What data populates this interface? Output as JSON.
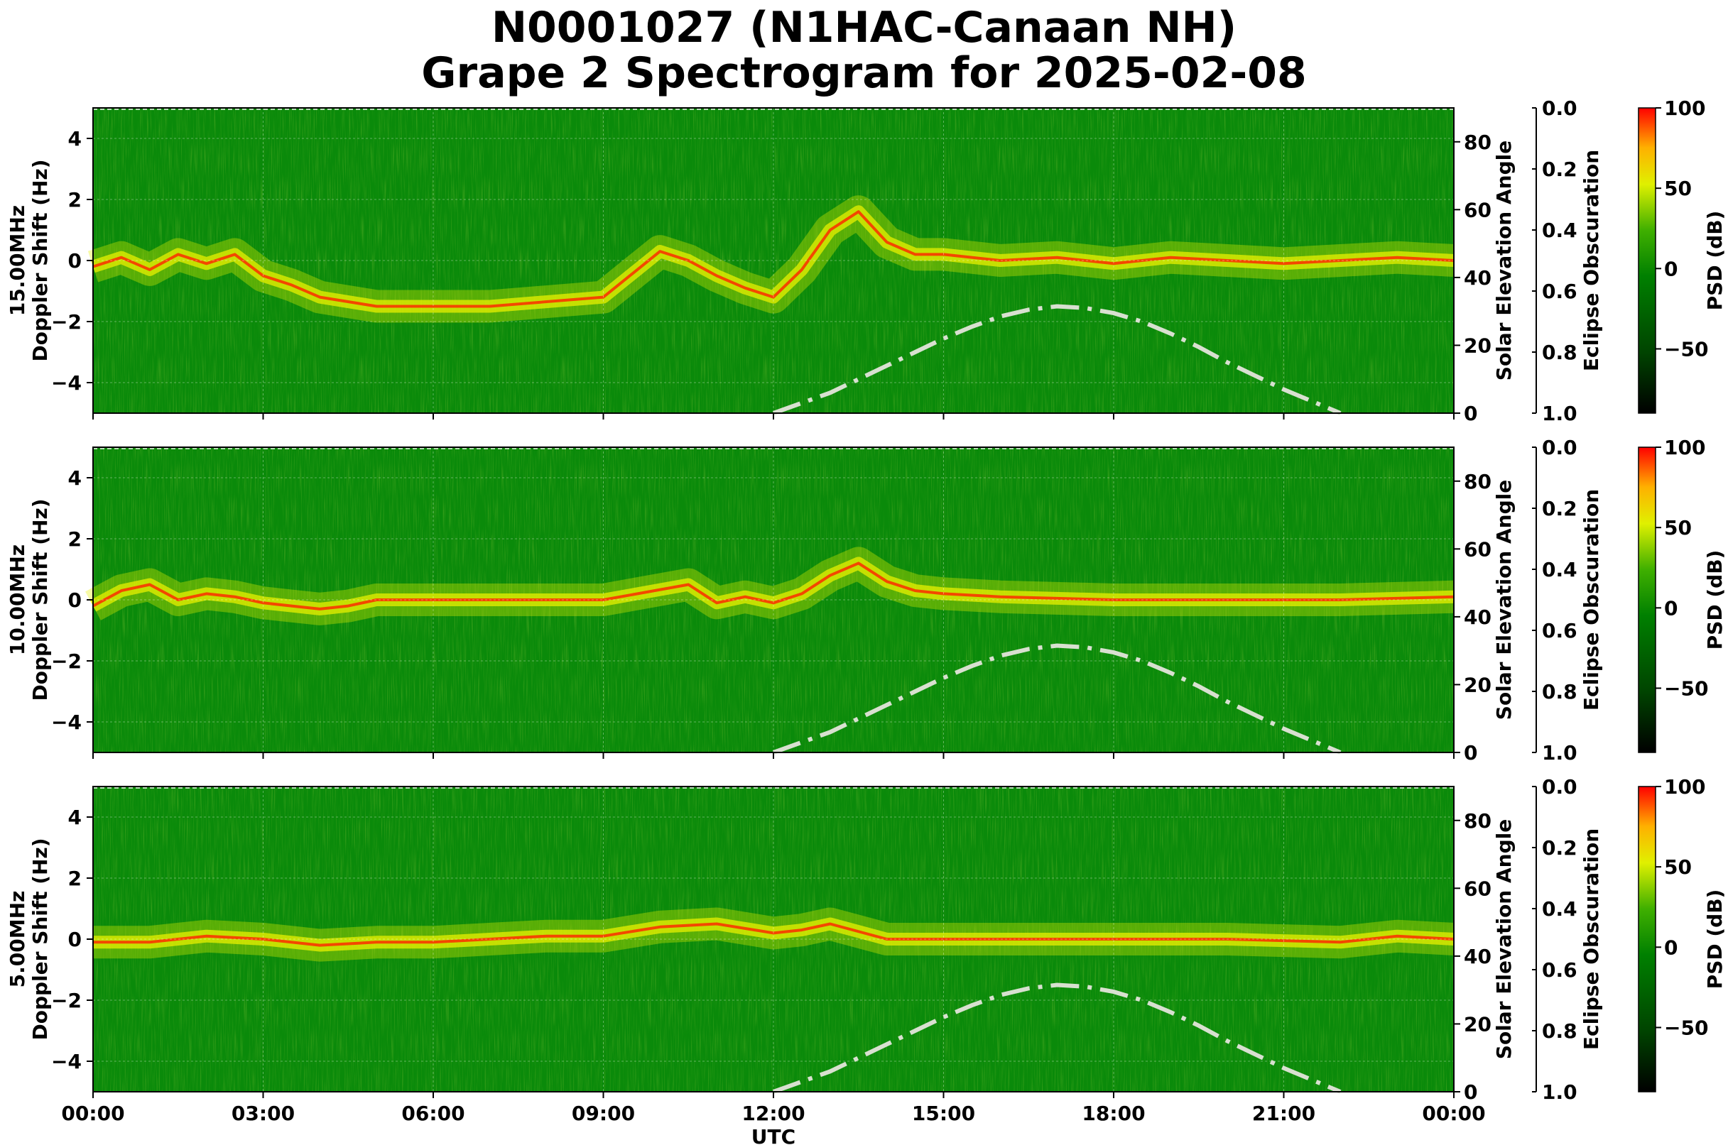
{
  "title_line1": "N0001027 (N1HAC-Canaan NH)",
  "title_line2": "Grape 2 Spectrogram for 2025-02-08",
  "colors": {
    "background_green": "#0a8a0a",
    "mid_yellow": "#e8f000",
    "hot_red": "#ff2000",
    "elevation_curve": "#d8e0d0",
    "colorbar_bottom": "#000000",
    "colorbar_top": "#ff0000"
  },
  "chart_data": {
    "type": "heatmap",
    "x_label": "UTC",
    "x_ticks": [
      "00:00",
      "03:00",
      "06:00",
      "09:00",
      "12:00",
      "15:00",
      "18:00",
      "21:00",
      "00:00"
    ],
    "x_range_hours": [
      0,
      24
    ],
    "y_ticks": [
      "4",
      "2",
      "0",
      "−2",
      "−4"
    ],
    "y_ticks_values": [
      4,
      2,
      0,
      -2,
      -4
    ],
    "y_range": [
      -5,
      5
    ],
    "right_axis_label": "Solar Elevation Angle",
    "right_axis_ticks": [
      "80",
      "60",
      "40",
      "20",
      "0"
    ],
    "right_axis_ticks_values": [
      80,
      60,
      40,
      20,
      0
    ],
    "right_axis_range": [
      0,
      90
    ],
    "eclipse_label": "Eclipse Obscuration",
    "eclipse_ticks": [
      "0.0",
      "0.2",
      "0.4",
      "0.6",
      "0.8",
      "1.0"
    ],
    "eclipse_ticks_values": [
      0.0,
      0.2,
      0.4,
      0.6,
      0.8,
      1.0
    ],
    "colorbar_label": "PSD (dB)",
    "colorbar_ticks": [
      "100",
      "50",
      "0",
      "−50"
    ],
    "colorbar_ticks_values": [
      100,
      50,
      0,
      -50
    ],
    "colorbar_range": [
      -90,
      100
    ],
    "grid": true,
    "solar_elevation": {
      "hours": [
        12.0,
        12.5,
        13.0,
        13.5,
        14.0,
        14.5,
        15.0,
        15.5,
        16.0,
        16.5,
        17.0,
        17.5,
        18.0,
        18.5,
        19.0,
        19.5,
        20.0,
        20.5,
        21.0,
        21.5,
        22.0
      ],
      "degrees": [
        0,
        3,
        6,
        10,
        14,
        18,
        22,
        25.5,
        28.5,
        30.5,
        31.5,
        31,
        29.5,
        27,
        23.5,
        19.5,
        15,
        11,
        7,
        3.5,
        0
      ]
    },
    "panels": [
      {
        "name": "15.00MHz",
        "y_label_line1": "15.00MHz",
        "y_label_line2": "Doppler Shift (Hz)",
        "ridge": {
          "hours": [
            0,
            0.5,
            1,
            1.5,
            2,
            2.5,
            3,
            3.5,
            4,
            5,
            7,
            9,
            10,
            10.5,
            11,
            11.5,
            12,
            12.5,
            13,
            13.5,
            14,
            14.5,
            15,
            16,
            17,
            18,
            19,
            20,
            21,
            22,
            23,
            24
          ],
          "hz": [
            -0.2,
            0.1,
            -0.3,
            0.2,
            -0.1,
            0.2,
            -0.5,
            -0.8,
            -1.2,
            -1.5,
            -1.5,
            -1.2,
            0.3,
            0.0,
            -0.5,
            -0.9,
            -1.2,
            -0.3,
            1.0,
            1.6,
            0.6,
            0.2,
            0.2,
            0.0,
            0.1,
            -0.1,
            0.1,
            0.0,
            -0.1,
            0.0,
            0.1,
            0.0
          ]
        }
      },
      {
        "name": "10.00MHz",
        "y_label_line1": "10.00MHz",
        "y_label_line2": "Doppler Shift (Hz)",
        "ridge": {
          "hours": [
            0,
            0.5,
            1,
            1.5,
            2,
            2.5,
            3,
            3.5,
            4,
            4.5,
            5,
            7,
            9,
            10.5,
            11,
            11.5,
            12,
            12.5,
            13,
            13.5,
            14,
            14.5,
            15,
            16,
            18,
            20,
            22,
            24
          ],
          "hz": [
            -0.2,
            0.3,
            0.5,
            0.0,
            0.2,
            0.1,
            -0.1,
            -0.2,
            -0.3,
            -0.2,
            0.0,
            0.0,
            0.0,
            0.5,
            -0.1,
            0.1,
            -0.1,
            0.2,
            0.8,
            1.2,
            0.6,
            0.3,
            0.2,
            0.1,
            0.0,
            0.0,
            0.0,
            0.1
          ]
        }
      },
      {
        "name": "5.00MHz",
        "y_label_line1": "5.00MHz",
        "y_label_line2": "Doppler Shift (Hz)",
        "ridge": {
          "hours": [
            0,
            1,
            2,
            3,
            4,
            5,
            6,
            7,
            8,
            9,
            10,
            11,
            12,
            12.5,
            13,
            14,
            16,
            18,
            20,
            22,
            23,
            24
          ],
          "hz": [
            -0.1,
            -0.1,
            0.1,
            0.0,
            -0.2,
            -0.1,
            -0.1,
            0.0,
            0.1,
            0.1,
            0.4,
            0.5,
            0.2,
            0.3,
            0.5,
            0.0,
            0.0,
            0.0,
            0.0,
            -0.1,
            0.1,
            0.0
          ]
        }
      }
    ]
  }
}
